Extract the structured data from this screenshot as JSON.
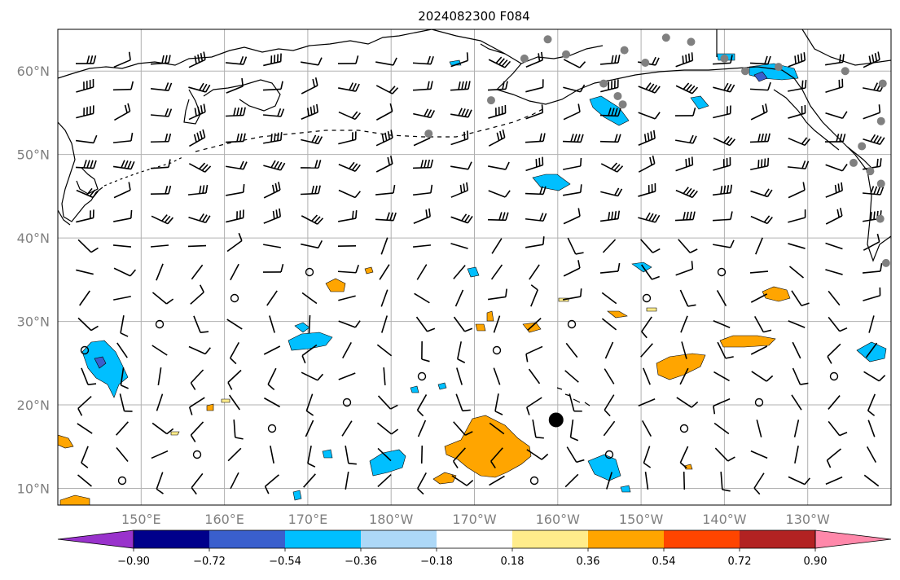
{
  "title": "2024082300 F084",
  "map": {
    "lat_range": [
      8,
      65
    ],
    "lon_range_east": [
      140,
      240
    ],
    "lat_ticks": [
      {
        "value": 10,
        "label": "10°N"
      },
      {
        "value": 20,
        "label": "20°N"
      },
      {
        "value": 30,
        "label": "30°N"
      },
      {
        "value": 40,
        "label": "40°N"
      },
      {
        "value": 50,
        "label": "50°N"
      },
      {
        "value": 60,
        "label": "60°N"
      }
    ],
    "lon_ticks": [
      {
        "value": 150,
        "label": "150°E"
      },
      {
        "value": 160,
        "label": "160°E"
      },
      {
        "value": 170,
        "label": "170°E"
      },
      {
        "value": 180,
        "label": "180°W"
      },
      {
        "value": 190,
        "label": "170°W"
      },
      {
        "value": 200,
        "label": "160°W"
      },
      {
        "value": 210,
        "label": "150°W"
      },
      {
        "value": 220,
        "label": "140°W"
      },
      {
        "value": 230,
        "label": "130°W"
      }
    ],
    "grid": true,
    "center_marker": {
      "lon": 199.8,
      "lat": 18.2
    }
  },
  "colorbar": {
    "ticks": [
      "−0.90",
      "−0.72",
      "−0.54",
      "−0.36",
      "−0.18",
      "0.18",
      "0.36",
      "0.54",
      "0.72",
      "0.90"
    ],
    "colors": [
      "#9932cc",
      "#00008b",
      "#3a5fcd",
      "#00bfff",
      "#add8f7",
      "#ffffff",
      "#ffec8b",
      "#ffa500",
      "#ff4500",
      "#b22222",
      "#ff88aa"
    ],
    "extend": "both"
  },
  "colors": {
    "grid": "#b0b0b0",
    "station_dots": "#808080",
    "coast": "#000000"
  }
}
